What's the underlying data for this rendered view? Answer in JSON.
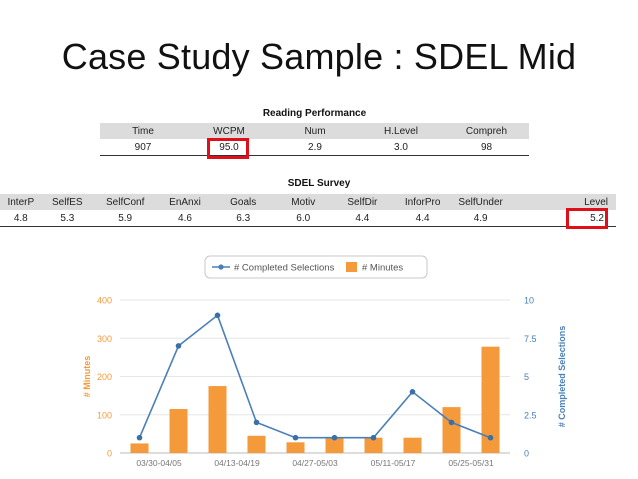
{
  "slide": {
    "title": "Case Study Sample : SDEL Mid"
  },
  "reading_performance": {
    "caption": "Reading Performance",
    "headers": [
      "Time",
      "WCPM",
      "Num",
      "H.Level",
      "Compreh"
    ],
    "values": [
      "907",
      "95.0",
      "2.9",
      "3.0",
      "98"
    ]
  },
  "sdel_survey": {
    "caption": "SDEL Survey",
    "headers": [
      "InterP",
      "SelfES",
      "SelfConf",
      "EnAnxi",
      "Goals",
      "Motiv",
      "SelfDir",
      "InforPro",
      "SelfUnder",
      "Level"
    ],
    "values": [
      "4.8",
      "5.3",
      "5.9",
      "4.6",
      "6.3",
      "6.0",
      "4.4",
      "4.4",
      "4.9",
      "5.2"
    ]
  },
  "highlight_color": "#e0101a",
  "chart_data": {
    "type": "bar+line",
    "x_labels": [
      "03/30-04/05",
      "04/13-04/19",
      "04/27-05/03",
      "05/11-05/17",
      "05/25-05/31"
    ],
    "x_label_positions": [
      0.5,
      2.5,
      4.5,
      6.5,
      8.5
    ],
    "n_weeks": 10,
    "series": [
      {
        "name": "# Minutes",
        "type": "bar",
        "axis": "left",
        "color": "#f59a3b",
        "values": [
          25,
          115,
          175,
          45,
          28,
          40,
          40,
          40,
          120,
          278
        ]
      },
      {
        "name": "# Completed Selections",
        "type": "line",
        "axis": "right",
        "color": "#4a80b8",
        "values": [
          1,
          7,
          9,
          2,
          1,
          1,
          1,
          4,
          2,
          1
        ]
      }
    ],
    "left_axis": {
      "label": "# Minutes",
      "min": 0,
      "max": 400,
      "ticks": [
        "0",
        "100",
        "200",
        "300",
        "400"
      ]
    },
    "right_axis": {
      "label": "# Completed Selections",
      "min": 0,
      "max": 10,
      "ticks": [
        "0",
        "2.5",
        "5",
        "7.5",
        "10"
      ]
    },
    "legend": [
      "# Completed Selections",
      "# Minutes"
    ],
    "legend_position": "top-center",
    "grid": "horizontal"
  }
}
